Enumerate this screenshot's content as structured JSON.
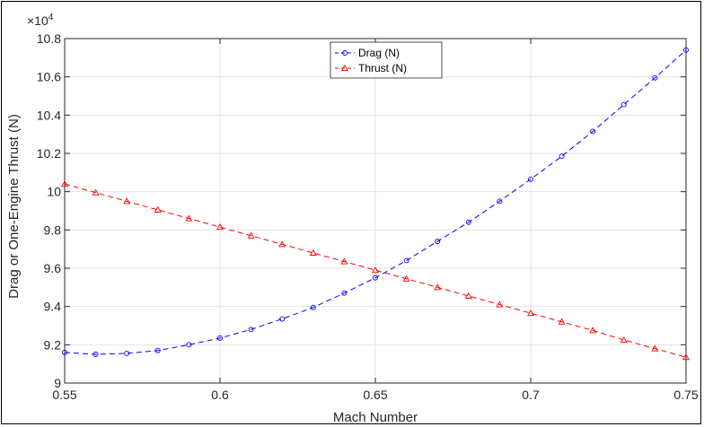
{
  "chart_data": {
    "type": "line",
    "xlabel": "Mach Number",
    "ylabel": "Drag or One-Engine Thrust (N)",
    "y_exponent_label": "×10",
    "y_exponent_power": "4",
    "xlim": [
      0.55,
      0.75
    ],
    "ylim": [
      9.0,
      10.8
    ],
    "x_ticks": [
      "0.55",
      "0.6",
      "0.65",
      "0.7",
      "0.75"
    ],
    "x_tick_values": [
      0.55,
      0.6,
      0.65,
      0.7,
      0.75
    ],
    "y_ticks": [
      "9",
      "9.2",
      "9.4",
      "9.6",
      "9.8",
      "10",
      "10.2",
      "10.4",
      "10.6",
      "10.8"
    ],
    "y_tick_values": [
      9.0,
      9.2,
      9.4,
      9.6,
      9.8,
      10.0,
      10.2,
      10.4,
      10.6,
      10.8
    ],
    "grid": true,
    "legend_position": "top-center",
    "x": [
      0.55,
      0.56,
      0.57,
      0.58,
      0.59,
      0.6,
      0.61,
      0.62,
      0.63,
      0.64,
      0.65,
      0.66,
      0.67,
      0.68,
      0.69,
      0.7,
      0.71,
      0.72,
      0.73,
      0.74,
      0.75
    ],
    "series": [
      {
        "name": "Drag (N)",
        "color": "#0000ff",
        "marker": "circle",
        "values": [
          9.16,
          9.15,
          9.155,
          9.17,
          9.2,
          9.235,
          9.28,
          9.335,
          9.395,
          9.47,
          9.55,
          9.64,
          9.74,
          9.84,
          9.95,
          10.065,
          10.185,
          10.315,
          10.455,
          10.595,
          10.74
        ]
      },
      {
        "name": "Thrust (N)",
        "color": "#ff0000",
        "marker": "triangle",
        "values": [
          10.04,
          9.995,
          9.95,
          9.905,
          9.86,
          9.815,
          9.77,
          9.725,
          9.68,
          9.635,
          9.59,
          9.545,
          9.5,
          9.455,
          9.41,
          9.365,
          9.32,
          9.275,
          9.225,
          9.18,
          9.135
        ]
      }
    ]
  }
}
